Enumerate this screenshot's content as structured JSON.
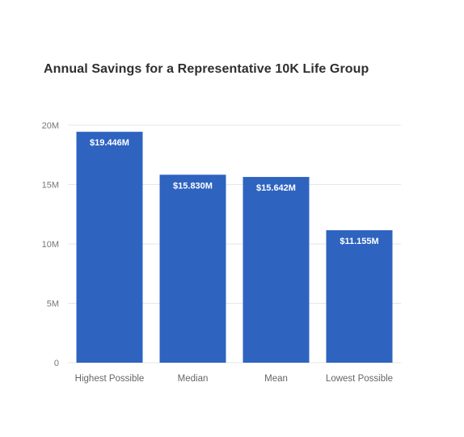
{
  "chart_data": {
    "type": "bar",
    "title": "Annual Savings for a Representative 10K Life Group",
    "xlabel": "",
    "ylabel": "",
    "categories": [
      "Highest Possible",
      "Median",
      "Mean",
      "Lowest Possible"
    ],
    "values": [
      19.446,
      15.83,
      15.642,
      11.155
    ],
    "value_unit": "M",
    "data_labels": [
      "$19.446M",
      "$15.830M",
      "$15.642M",
      "$11.155M"
    ],
    "ylim": [
      0,
      20
    ],
    "yticks": [
      0,
      5,
      10,
      15,
      20
    ],
    "ytick_labels": [
      "0",
      "5M",
      "10M",
      "15M",
      "20M"
    ],
    "grid": true,
    "legend": "none",
    "bar_color": "#2e63c0",
    "grid_color": "#e6e6e6"
  }
}
